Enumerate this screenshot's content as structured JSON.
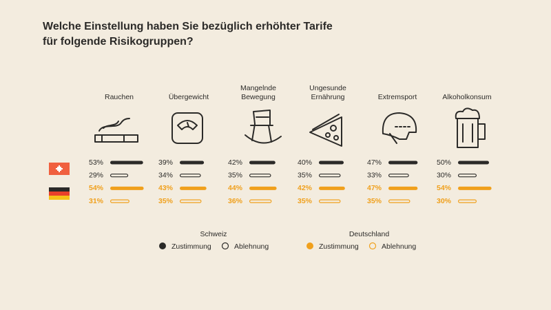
{
  "chart_data": {
    "type": "bar",
    "title": "Welche Einstellung haben Sie bezüglich erhöhter Tarife\nfür folgende Risikogruppen?",
    "categories": [
      "Rauchen",
      "Übergewicht",
      "Mangelnde\nBewegung",
      "Ungesunde\nErnährung",
      "Extremsport",
      "Alkoholkonsum"
    ],
    "series": [
      {
        "name": "Zustimmung",
        "group": "Schweiz",
        "color": "#2b2a28",
        "filled": true,
        "values": [
          53,
          39,
          42,
          40,
          47,
          50
        ],
        "value_labels": [
          "53%",
          "39%",
          "42%",
          "40%",
          "47%",
          "50%"
        ]
      },
      {
        "name": "Ablehnung",
        "group": "Schweiz",
        "color": "#2b2a28",
        "filled": false,
        "values": [
          29,
          34,
          35,
          35,
          33,
          30
        ],
        "value_labels": [
          "29%",
          "34%",
          "35%",
          "35%",
          "33%",
          "30%"
        ]
      },
      {
        "name": "Zustimmung",
        "group": "Deutschland",
        "color": "#f0a01c",
        "filled": true,
        "values": [
          54,
          43,
          44,
          42,
          47,
          54
        ],
        "value_labels": [
          "54%",
          "43%",
          "44%",
          "42%",
          "47%",
          "54%"
        ]
      },
      {
        "name": "Ablehnung",
        "group": "Deutschland",
        "color": "#f0a01c",
        "filled": false,
        "values": [
          31,
          35,
          36,
          35,
          35,
          30
        ],
        "value_labels": [
          "31%",
          "35%",
          "36%",
          "35%",
          "35%",
          "30%"
        ]
      }
    ]
  }
}
